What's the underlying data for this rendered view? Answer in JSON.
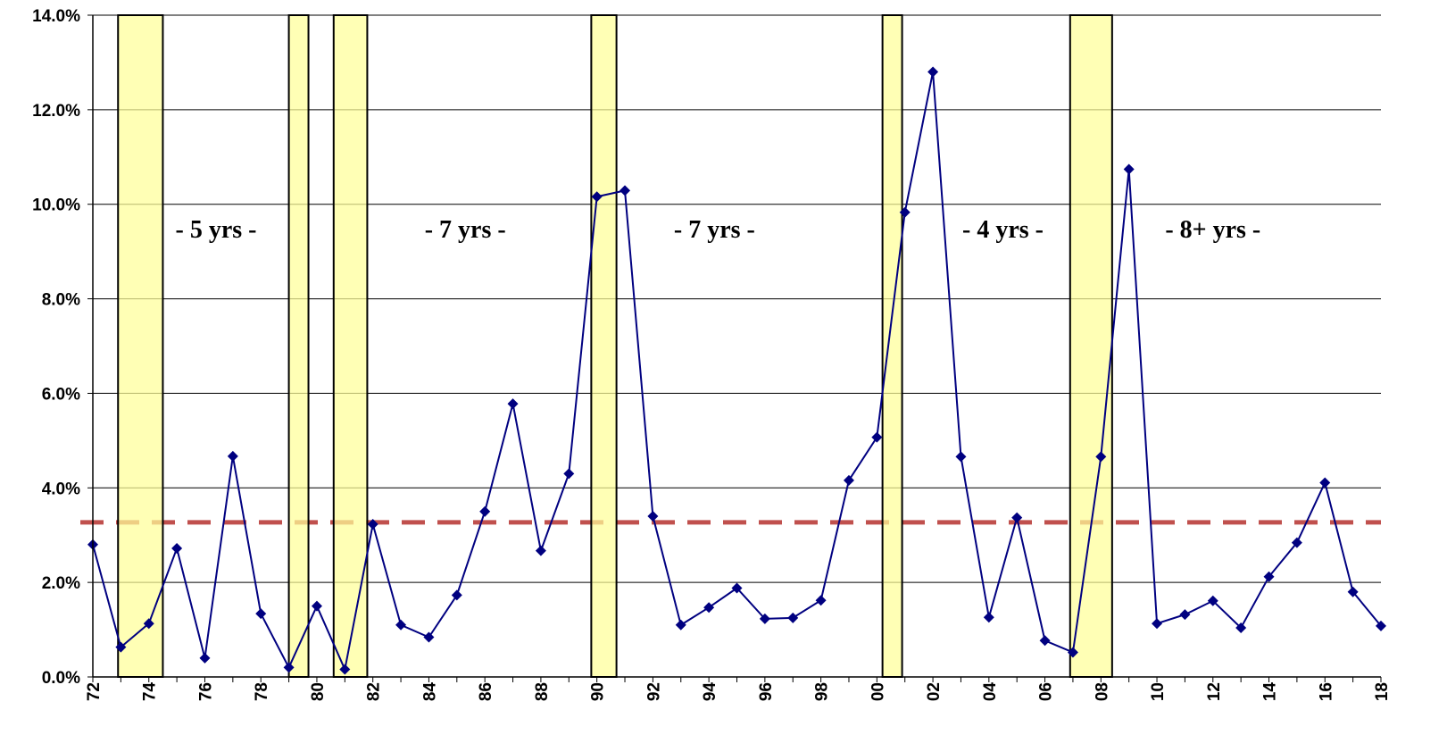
{
  "chart_data": {
    "type": "line",
    "title": "",
    "xlabel": "",
    "ylabel": "",
    "ylim": [
      0,
      14
    ],
    "y_ticks": [
      "0.0%",
      "2.0%",
      "4.0%",
      "6.0%",
      "8.0%",
      "10.0%",
      "12.0%",
      "14.0%"
    ],
    "y_tick_values": [
      0,
      2,
      4,
      6,
      8,
      10,
      12,
      14
    ],
    "x_ticks": [
      "72",
      "74",
      "76",
      "78",
      "80",
      "82",
      "84",
      "86",
      "88",
      "90",
      "92",
      "94",
      "96",
      "98",
      "00",
      "02",
      "04",
      "06",
      "08",
      "10",
      "12",
      "14",
      "16",
      "18"
    ],
    "grid": "horizontal",
    "x": [
      "1972",
      "1973",
      "1974",
      "1975",
      "1976",
      "1977",
      "1978",
      "1979",
      "1980",
      "1981",
      "1982",
      "1983",
      "1984",
      "1985",
      "1986",
      "1987",
      "1988",
      "1989",
      "1990",
      "1991",
      "1992",
      "1993",
      "1994",
      "1995",
      "1996",
      "1997",
      "1998",
      "1999",
      "2000",
      "2001",
      "2002",
      "2003",
      "2004",
      "2005",
      "2006",
      "2007",
      "2008",
      "2009",
      "2010",
      "2011",
      "2012",
      "2013",
      "2014",
      "2015",
      "2016",
      "2017",
      "2018"
    ],
    "series": [
      {
        "values": [
          2.8,
          0.63,
          1.13,
          2.72,
          0.4,
          4.67,
          1.34,
          0.2,
          1.5,
          0.16,
          3.23,
          1.1,
          0.84,
          1.73,
          3.5,
          5.78,
          2.67,
          4.3,
          10.16,
          10.29,
          3.4,
          1.1,
          1.47,
          1.88,
          1.23,
          1.25,
          1.62,
          4.16,
          5.07,
          9.83,
          12.8,
          4.66,
          1.26,
          3.37,
          0.77,
          0.52,
          4.66,
          10.74,
          1.13,
          1.32,
          1.61,
          1.04,
          2.12,
          2.84,
          4.11,
          1.8,
          1.08
        ],
        "color": "#000080",
        "marker": "diamond"
      }
    ],
    "average_line": {
      "value": 3.27,
      "color": "#c0504d",
      "style": "dashed"
    },
    "recession_bands": [
      {
        "start": 1972.9,
        "end": 1974.5
      },
      {
        "start": 1979.0,
        "end": 1979.7
      },
      {
        "start": 1980.6,
        "end": 1981.8
      },
      {
        "start": 1989.8,
        "end": 1990.7
      },
      {
        "start": 2000.2,
        "end": 2000.9
      },
      {
        "start": 2006.9,
        "end": 2008.4
      }
    ],
    "band_color": "#ffff99",
    "annotations": [
      {
        "text": "- 5 yrs -",
        "x": 1976.4,
        "y": 9.3
      },
      {
        "text": "- 7 yrs -",
        "x": 1985.3,
        "y": 9.3
      },
      {
        "text": "- 7 yrs -",
        "x": 1994.2,
        "y": 9.3
      },
      {
        "text": "- 4 yrs -",
        "x": 2004.5,
        "y": 9.3
      },
      {
        "text": "- 8+ yrs -",
        "x": 2012.0,
        "y": 9.3
      }
    ]
  }
}
